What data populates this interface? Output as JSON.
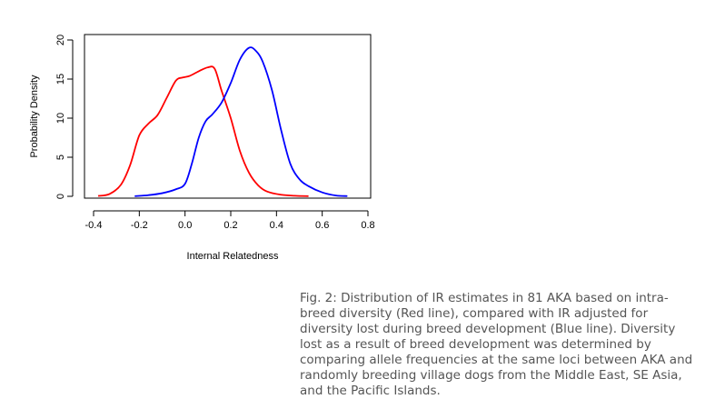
{
  "chart_data": {
    "type": "line",
    "xlabel": "Internal Relatedness",
    "ylabel": "Probability Density",
    "xlim": [
      -0.4,
      0.8
    ],
    "ylim": [
      0,
      20
    ],
    "xticks": [
      "-0.4",
      "-0.2",
      "0.0",
      "0.2",
      "0.4",
      "0.6",
      "0.8"
    ],
    "yticks": [
      "0",
      "5",
      "10",
      "15",
      "20"
    ],
    "grid": false,
    "series": [
      {
        "color": "#ff0000",
        "x": [
          -0.38,
          -0.33,
          -0.28,
          -0.24,
          -0.2,
          -0.16,
          -0.12,
          -0.08,
          -0.04,
          -0.01,
          0.02,
          0.06,
          0.1,
          0.13,
          0.16,
          0.2,
          0.24,
          0.28,
          0.32,
          0.36,
          0.42,
          0.48,
          0.54
        ],
        "y": [
          0.05,
          0.3,
          1.5,
          4.0,
          7.8,
          9.3,
          10.4,
          12.6,
          14.8,
          15.2,
          15.4,
          16.0,
          16.5,
          16.3,
          13.5,
          10.0,
          5.8,
          3.0,
          1.4,
          0.6,
          0.2,
          0.07,
          0.02
        ]
      },
      {
        "color": "#0000ff",
        "x": [
          -0.22,
          -0.16,
          -0.1,
          -0.04,
          0.0,
          0.03,
          0.06,
          0.09,
          0.12,
          0.16,
          0.2,
          0.24,
          0.28,
          0.31,
          0.34,
          0.38,
          0.42,
          0.46,
          0.5,
          0.54,
          0.6,
          0.66,
          0.71
        ],
        "y": [
          0.02,
          0.15,
          0.4,
          0.9,
          1.6,
          4.2,
          7.5,
          9.6,
          10.5,
          12.0,
          14.5,
          17.5,
          19.0,
          18.6,
          17.2,
          13.6,
          8.5,
          4.2,
          2.2,
          1.3,
          0.5,
          0.1,
          0.03
        ]
      }
    ]
  },
  "caption": "Fig. 2: Distribution of IR estimates in 81 AKA based on intra-breed diversity (Red line), compared with IR adjusted for diversity lost during breed development (Blue line). Diversity lost as a result of breed development was determined by comparing allele frequencies at the same loci between AKA and randomly breeding village dogs from the Middle East, SE Asia, and the Pacific Islands."
}
